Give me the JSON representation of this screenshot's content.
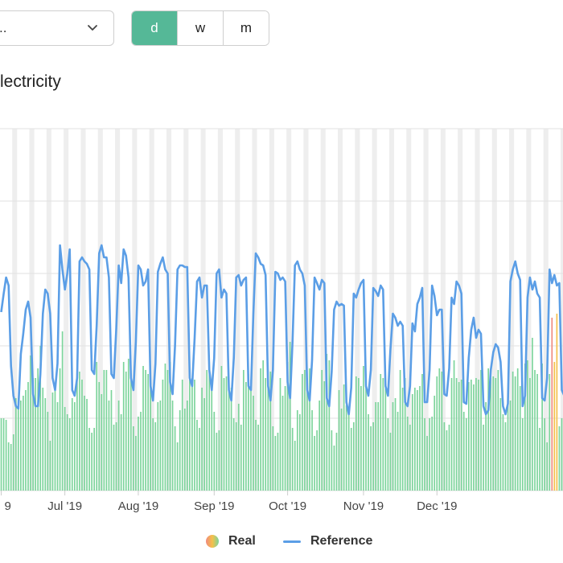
{
  "controls": {
    "period_select_value": "..",
    "resolution_buttons": [
      {
        "label": "d",
        "active": true
      },
      {
        "label": "w",
        "active": false
      },
      {
        "label": "m",
        "active": false
      }
    ]
  },
  "chart_title": "lectricity",
  "legend": {
    "real": "Real",
    "reference": "Reference"
  },
  "colors": {
    "real_normal": "#7cd49b",
    "real_high": "#f08a7e",
    "real_mid": "#f5c04a",
    "reference": "#5b9ee6",
    "weekend_band": "#eeeeee",
    "accent": "#55b897"
  },
  "chart_data": {
    "type": "bar",
    "title": "lectricity",
    "x_tick_labels": [
      "9",
      "Jul '19",
      "Aug '19",
      "Sep '19",
      "Oct '19",
      "Nov '19",
      "Dec '19"
    ],
    "grid": true,
    "legend_position": "bottom-center",
    "series": [
      {
        "name": "Real",
        "type": "bar",
        "values": [
          90,
          90,
          88,
          60,
          58,
          70,
          115,
          115,
          112,
          118,
          125,
          135,
          168,
          140,
          140,
          152,
          180,
          128,
          115,
          98,
          62,
          122,
          132,
          110,
          152,
          198,
          104,
          95,
          90,
          115,
          110,
          162,
          148,
          138,
          118,
          114,
          78,
          72,
          78,
          160,
          135,
          120,
          150,
          150,
          112,
          125,
          82,
          85,
          112,
          95,
          160,
          148,
          164,
          140,
          80,
          68,
          92,
          98,
          155,
          150,
          145,
          135,
          90,
          85,
          110,
          112,
          138,
          158,
          150,
          160,
          112,
          80,
          60,
          100,
          138,
          102,
          112,
          145,
          140,
          138,
          88,
          78,
          128,
          115,
          150,
          160,
          125,
          98,
          72,
          75,
          155,
          140,
          142,
          132,
          128,
          90,
          85,
          108,
          82,
          150,
          135,
          145,
          138,
          118,
          88,
          82,
          152,
          162,
          140,
          150,
          148,
          80,
          68,
          72,
          140,
          118,
          130,
          160,
          185,
          78,
          62,
          100,
          95,
          145,
          150,
          140,
          152,
          100,
          68,
          75,
          112,
          150,
          136,
          170,
          162,
          75,
          56,
          72,
          125,
          102,
          132,
          106,
          98,
          78,
          85,
          142,
          140,
          130,
          155,
          140,
          95,
          80,
          85,
          110,
          110,
          145,
          140,
          132,
          90,
          72,
          110,
          115,
          98,
          150,
          128,
          140,
          92,
          82,
          120,
          128,
          125,
          130,
          145,
          90,
          68,
          90,
          92,
          118,
          142,
          152,
          148,
          85,
          75,
          82,
          140,
          162,
          140,
          135,
          138,
          98,
          90,
          135,
          138,
          132,
          140,
          138,
          150,
          82,
          110,
          152,
          140,
          142,
          140,
          150,
          115,
          95,
          85,
          118,
          112,
          148,
          142,
          152,
          130,
          90,
          158,
          162,
          140,
          190,
          150,
          145,
          78,
          158,
          90,
          60,
          145,
          215,
          160,
          220,
          80,
          90
        ]
      },
      {
        "name": "Reference",
        "type": "line",
        "values": [
          222,
          245,
          265,
          255,
          155,
          118,
          105,
          102,
          170,
          195,
          225,
          235,
          215,
          120,
          105,
          105,
          145,
          220,
          250,
          245,
          220,
          140,
          125,
          158,
          305,
          275,
          250,
          270,
          300,
          125,
          118,
          140,
          285,
          290,
          285,
          282,
          275,
          150,
          145,
          205,
          295,
          305,
          290,
          290,
          265,
          145,
          140,
          202,
          280,
          258,
          300,
          292,
          265,
          140,
          125,
          185,
          280,
          275,
          255,
          260,
          275,
          130,
          112,
          158,
          272,
          282,
          290,
          275,
          270,
          135,
          120,
          180,
          275,
          280,
          280,
          278,
          278,
          140,
          130,
          190,
          260,
          265,
          240,
          255,
          255,
          150,
          125,
          165,
          270,
          275,
          240,
          250,
          245,
          125,
          112,
          165,
          265,
          268,
          255,
          262,
          265,
          130,
          125,
          220,
          295,
          290,
          282,
          280,
          268,
          130,
          112,
          150,
          272,
          270,
          262,
          265,
          260,
          135,
          115,
          185,
          280,
          285,
          275,
          270,
          255,
          125,
          112,
          162,
          265,
          258,
          250,
          262,
          258,
          115,
          105,
          148,
          225,
          235,
          230,
          232,
          230,
          110,
          95,
          128,
          245,
          240,
          250,
          258,
          262,
          130,
          118,
          150,
          252,
          248,
          242,
          255,
          250,
          130,
          118,
          175,
          220,
          215,
          205,
          210,
          205,
          110,
          105,
          130,
          208,
          198,
          232,
          240,
          252,
          110,
          110,
          150,
          255,
          242,
          218,
          225,
          225,
          120,
          118,
          152,
          240,
          232,
          260,
          255,
          245,
          110,
          108,
          165,
          200,
          215,
          190,
          200,
          195,
          105,
          95,
          100,
          150,
          172,
          182,
          178,
          160,
          105,
          95,
          108,
          260,
          275,
          285,
          270,
          262,
          105,
          118,
          240,
          265,
          250,
          260,
          245,
          240,
          115,
          112,
          140,
          275,
          258,
          268,
          255,
          258,
          125,
          118,
          235,
          262,
          270,
          258,
          265,
          252,
          140,
          138,
          170,
          270,
          278,
          262,
          265,
          262,
          142,
          125,
          215,
          275,
          260,
          222,
          220
        ]
      }
    ]
  }
}
